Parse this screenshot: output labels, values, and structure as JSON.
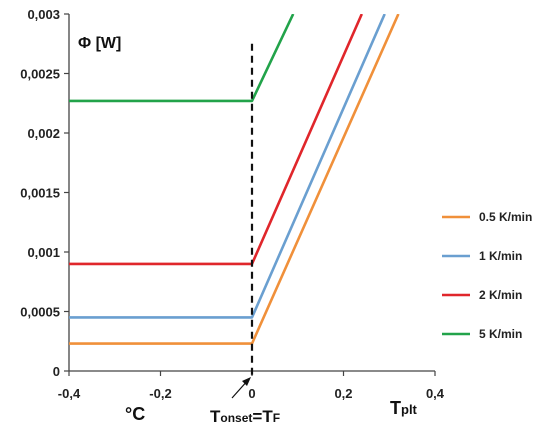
{
  "chart_data": {
    "type": "line",
    "ylabel": "Φ [W]",
    "xunit": "°C",
    "annotation": "Tonset=TF",
    "annotation_parts": {
      "t1": "T",
      "s1": "onset",
      "eq": "=T",
      "s2": "F"
    },
    "xaxis_end_label_parts": {
      "main": "T",
      "sub": "plt"
    },
    "xlim": [
      -0.4,
      0.4
    ],
    "ylim": [
      0,
      0.003
    ],
    "xticks": [
      "-0,4",
      "-0,2",
      "0",
      "0,2",
      "0,4"
    ],
    "yticks": [
      "0",
      "0,0005",
      "0,001",
      "0,0015",
      "0,002",
      "0,0025",
      "0,003"
    ],
    "grid": false,
    "legend_position": "right",
    "series": [
      {
        "name": "0.5 K/min",
        "color": "#F0903A",
        "x": [
          -0.4,
          0.0,
          0.32
        ],
        "y": [
          0.00023,
          0.00023,
          0.003
        ]
      },
      {
        "name": "1 K/min",
        "color": "#6A9FD0",
        "x": [
          -0.4,
          0.0,
          0.29
        ],
        "y": [
          0.00045,
          0.00045,
          0.003
        ]
      },
      {
        "name": "2 K/min",
        "color": "#E0262B",
        "x": [
          -0.4,
          0.0,
          0.24
        ],
        "y": [
          0.0009,
          0.0009,
          0.003
        ]
      },
      {
        "name": "5 K/min",
        "color": "#22A34A",
        "x": [
          -0.4,
          0.0,
          0.09
        ],
        "y": [
          0.00227,
          0.00227,
          0.003
        ]
      }
    ],
    "vline_x": 0.0
  }
}
